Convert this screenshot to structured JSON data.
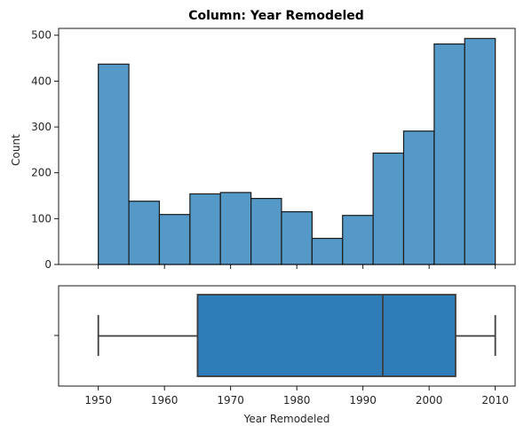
{
  "chart_data": [
    {
      "type": "bar",
      "title": "Column: Year Remodeled",
      "xlabel": "",
      "ylabel": "Count",
      "bin_edges": [
        1950,
        1954.62,
        1959.23,
        1963.85,
        1968.46,
        1973.08,
        1977.69,
        1982.31,
        1986.92,
        1991.54,
        1996.15,
        2000.77,
        2005.38,
        2010
      ],
      "values": [
        437,
        138,
        109,
        154,
        157,
        144,
        115,
        57,
        107,
        243,
        291,
        481,
        493
      ],
      "xlim": [
        1944,
        2013
      ],
      "ylim": [
        0,
        515
      ],
      "yticks": [
        "0",
        "100",
        "200",
        "300",
        "400",
        "500"
      ],
      "xticks": [
        1950,
        1960,
        1970,
        1980,
        1990,
        2000,
        2010
      ],
      "show_xtick_labels": false,
      "color": "#5499c7",
      "edge_color": "#1a1a1a",
      "grid": false
    },
    {
      "type": "box",
      "xlabel": "Year Remodeled",
      "min": 1950,
      "q1": 1965,
      "median": 1993,
      "q3": 2004,
      "max": 2010,
      "xlim": [
        1944,
        2013
      ],
      "xticks": [
        "1950",
        "1960",
        "1970",
        "1980",
        "1990",
        "2000",
        "2010"
      ],
      "color": "#2e7cb8",
      "line_color": "#3d3d3d",
      "grid": false
    }
  ]
}
